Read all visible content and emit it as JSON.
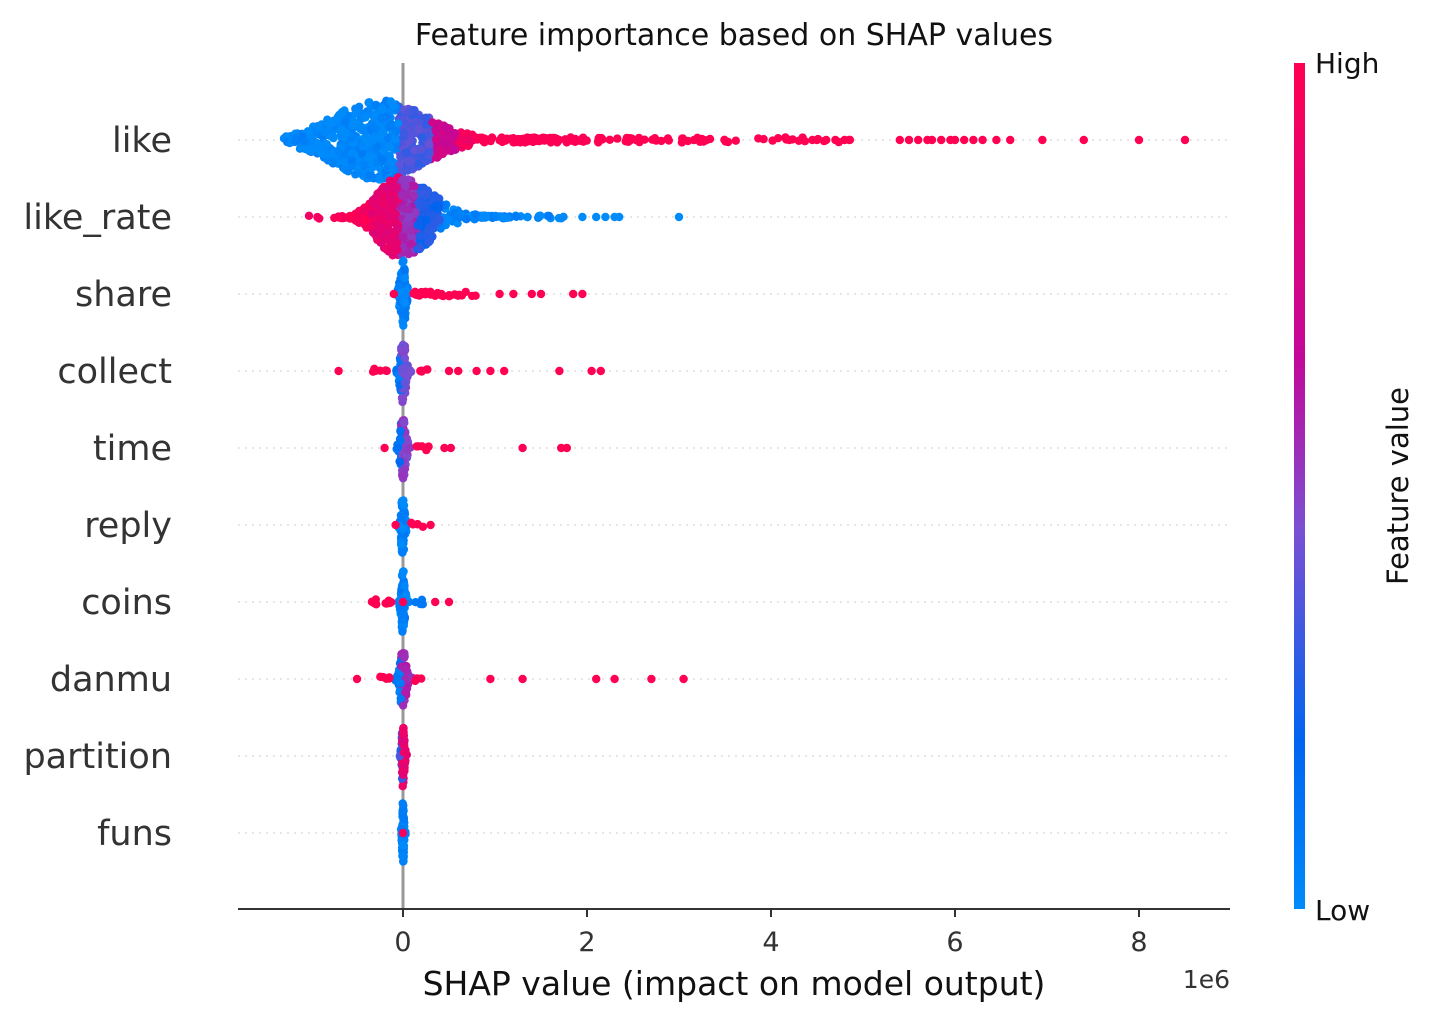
{
  "chart_data": {
    "type": "scatter",
    "subtype": "shap-beeswarm",
    "title": "Feature importance based on SHAP values",
    "xlabel": "SHAP value (impact on model output)",
    "x_offset_label": "1e6",
    "x_ticks": [
      0,
      2,
      4,
      6,
      8
    ],
    "xlim": [
      -1.8,
      9.0
    ],
    "features": [
      "like",
      "like_rate",
      "share",
      "collect",
      "time",
      "reply",
      "coins",
      "danmu",
      "partition",
      "funs"
    ],
    "colorbar": {
      "title": "Feature value",
      "high_label": "High",
      "low_label": "Low",
      "low_color": "#008bfb",
      "high_color": "#ff0052"
    },
    "series": [
      {
        "feature": "like",
        "dense": {
          "min": -1.3,
          "max": 0.8,
          "peak": -0.25,
          "width": 0.5,
          "tail": 1.2,
          "maxSpread": 1.0,
          "n": 750
        },
        "colors": [
          {
            "upTo": -0.05,
            "v": 0.02
          },
          {
            "upTo": 0.3,
            "v": 0.35
          },
          {
            "upTo": 0.6,
            "v": 0.7
          },
          {
            "upTo": 99,
            "v": 0.95
          }
        ],
        "sparse": [
          {
            "range": [
              0.8,
              2.0
            ],
            "n": 90,
            "v": 0.98
          },
          {
            "range": [
              2.0,
              3.3
            ],
            "n": 40,
            "v": 1.0
          },
          {
            "range": [
              3.3,
              4.9
            ],
            "n": 20,
            "v": 1.0
          }
        ],
        "points": [
          4.2,
          4.45,
          4.5,
          4.6,
          4.7,
          4.8,
          4.85,
          5.4,
          5.5,
          5.6,
          5.7,
          5.75,
          5.85,
          5.95,
          6.0,
          6.1,
          6.2,
          6.3,
          6.45,
          6.6,
          6.95,
          7.4,
          8.0,
          8.5
        ],
        "points_v": 1.0
      },
      {
        "feature": "like_rate",
        "dense": {
          "min": -1.05,
          "max": 1.9,
          "peak": -0.05,
          "width": 0.22,
          "tail": 0.9,
          "maxSpread": 1.0,
          "n": 700
        },
        "colors": [
          {
            "upTo": -0.35,
            "v": 0.97
          },
          {
            "upTo": -0.05,
            "v": 0.85
          },
          {
            "upTo": 0.15,
            "v": 0.55
          },
          {
            "upTo": 0.4,
            "v": 0.25
          },
          {
            "upTo": 99,
            "v": 0.03
          }
        ],
        "sparse": [],
        "points": [
          1.95,
          2.1,
          2.2,
          2.3,
          2.35,
          3.0
        ],
        "points_v": 0.0
      },
      {
        "feature": "share",
        "dense": {
          "min": -0.1,
          "max": 0.1,
          "peak": 0.0,
          "width": 0.03,
          "tail": 0.03,
          "maxSpread": 0.85,
          "n": 90
        },
        "colors": [
          {
            "upTo": 99,
            "v": 0.05
          }
        ],
        "sparse": [
          {
            "range": [
              0.1,
              0.8
            ],
            "n": 28,
            "v": 1.0
          }
        ],
        "points": [
          -0.1,
          1.05,
          1.2,
          1.4,
          1.5,
          1.85,
          1.95
        ],
        "points_v": 1.0
      },
      {
        "feature": "collect",
        "dense": {
          "min": -0.15,
          "max": 0.15,
          "peak": 0.0,
          "width": 0.03,
          "tail": 0.04,
          "maxSpread": 0.8,
          "n": 90
        },
        "colors": [
          {
            "upTo": -0.02,
            "v": 0.1
          },
          {
            "upTo": 99,
            "v": 0.45
          }
        ],
        "sparse": [
          {
            "range": [
              -0.35,
              -0.15
            ],
            "n": 6,
            "v": 1.0
          },
          {
            "range": [
              0.15,
              0.3
            ],
            "n": 5,
            "v": 1.0
          }
        ],
        "points": [
          -0.7,
          0.5,
          0.6,
          0.8,
          0.95,
          1.1,
          1.7,
          2.05,
          2.15
        ],
        "points_v": 1.0
      },
      {
        "feature": "time",
        "dense": {
          "min": -0.12,
          "max": 0.12,
          "peak": 0.0,
          "width": 0.03,
          "tail": 0.03,
          "maxSpread": 0.8,
          "n": 90
        },
        "colors": [
          {
            "upTo": -0.02,
            "v": 0.15
          },
          {
            "upTo": 99,
            "v": 0.5
          }
        ],
        "sparse": [
          {
            "range": [
              0.12,
              0.3
            ],
            "n": 6,
            "v": 1.0
          }
        ],
        "points": [
          -0.2,
          0.45,
          0.52,
          1.3,
          1.72,
          1.78
        ],
        "points_v": 1.0
      },
      {
        "feature": "reply",
        "dense": {
          "min": -0.08,
          "max": 0.08,
          "peak": 0.0,
          "width": 0.02,
          "tail": 0.02,
          "maxSpread": 0.8,
          "n": 80
        },
        "colors": [
          {
            "upTo": 99,
            "v": 0.05
          }
        ],
        "sparse": [
          {
            "range": [
              0.08,
              0.22
            ],
            "n": 5,
            "v": 1.0
          }
        ],
        "points": [
          -0.08,
          0.3
        ],
        "points_v": 1.0
      },
      {
        "feature": "coins",
        "dense": {
          "min": -0.1,
          "max": 0.1,
          "peak": 0.0,
          "width": 0.02,
          "tail": 0.03,
          "maxSpread": 0.8,
          "n": 80
        },
        "colors": [
          {
            "upTo": 99,
            "v": 0.05
          }
        ],
        "sparse": [
          {
            "range": [
              -0.35,
              -0.1
            ],
            "n": 10,
            "v": 1.0
          },
          {
            "range": [
              0.1,
              0.22
            ],
            "n": 4,
            "v": 0.1
          }
        ],
        "points": [
          0.0,
          0.35,
          0.5
        ],
        "points_v": 1.0
      },
      {
        "feature": "danmu",
        "dense": {
          "min": -0.12,
          "max": 0.12,
          "peak": 0.0,
          "width": 0.03,
          "tail": 0.03,
          "maxSpread": 0.8,
          "n": 90
        },
        "colors": [
          {
            "upTo": -0.02,
            "v": 0.1
          },
          {
            "upTo": 99,
            "v": 0.55
          }
        ],
        "sparse": [
          {
            "range": [
              -0.25,
              -0.12
            ],
            "n": 5,
            "v": 1.0
          },
          {
            "range": [
              0.12,
              0.2
            ],
            "n": 3,
            "v": 1.0
          }
        ],
        "points": [
          -0.5,
          0.95,
          1.3,
          2.1,
          2.3,
          2.7,
          3.05
        ],
        "points_v": 1.0
      },
      {
        "feature": "partition",
        "dense": {
          "min": -0.05,
          "max": 0.05,
          "peak": 0.0,
          "width": 0.015,
          "tail": 0.015,
          "maxSpread": 0.8,
          "n": 70
        },
        "colors": [
          {
            "upTo": -0.01,
            "v": 0.3
          },
          {
            "upTo": 99,
            "v": 0.85
          }
        ],
        "sparse": [],
        "points": [],
        "points_v": 1.0
      },
      {
        "feature": "funs",
        "dense": {
          "min": -0.04,
          "max": 0.04,
          "peak": 0.0,
          "width": 0.01,
          "tail": 0.01,
          "maxSpread": 0.8,
          "n": 70
        },
        "colors": [
          {
            "upTo": 99,
            "v": 0.05
          }
        ],
        "sparse": [],
        "points": [
          0.0
        ],
        "points_v": 0.95
      }
    ]
  }
}
